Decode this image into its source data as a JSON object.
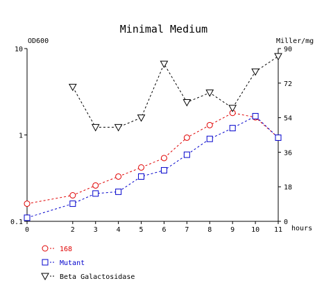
{
  "chart_data": {
    "type": "line",
    "title": "Minimal Medium",
    "left_axis": {
      "label": "OD600",
      "scale": "log",
      "range": [
        0.1,
        10
      ],
      "tick_labels": [
        "10",
        "1",
        "0.1"
      ],
      "tick_values": [
        10,
        1,
        0.1
      ]
    },
    "right_axis": {
      "label": "Miller/mg",
      "scale": "linear",
      "range": [
        0,
        90
      ],
      "tick_labels": [
        "90",
        "72",
        "54",
        "36",
        "18",
        "0"
      ],
      "tick_values": [
        90,
        72,
        54,
        36,
        18,
        0
      ]
    },
    "x_axis": {
      "label": "hours",
      "range": [
        0,
        11
      ],
      "tick_labels": [
        "0",
        "2",
        "3",
        "4",
        "5",
        "6",
        "7",
        "8",
        "9",
        "10",
        "11"
      ],
      "tick_values": [
        0,
        2,
        3,
        4,
        5,
        6,
        7,
        8,
        9,
        10,
        11
      ]
    },
    "grid": false,
    "legend_position": "bottom-left",
    "series": [
      {
        "name": "168",
        "axis": "left",
        "color": "#e00000",
        "marker": "circle",
        "x": [
          0,
          2,
          3,
          4,
          5,
          6,
          7,
          8,
          9,
          10,
          11
        ],
        "y": [
          0.16,
          0.2,
          0.26,
          0.33,
          0.42,
          0.54,
          0.93,
          1.3,
          1.8,
          1.6,
          0.93
        ]
      },
      {
        "name": "Mutant",
        "axis": "left",
        "color": "#0000cc",
        "marker": "square",
        "x": [
          0,
          2,
          3,
          4,
          5,
          6,
          7,
          8,
          9,
          10,
          11
        ],
        "y": [
          0.11,
          0.16,
          0.21,
          0.22,
          0.33,
          0.39,
          0.59,
          0.9,
          1.2,
          1.65,
          0.93
        ]
      },
      {
        "name": "Beta Galactosidase",
        "axis": "right",
        "color": "#000000",
        "marker": "triangle-down",
        "x": [
          2,
          3,
          4,
          5,
          6,
          7,
          8,
          9,
          10,
          11
        ],
        "y": [
          70,
          49,
          49,
          54,
          82,
          62,
          67,
          59,
          78,
          86
        ]
      }
    ]
  }
}
